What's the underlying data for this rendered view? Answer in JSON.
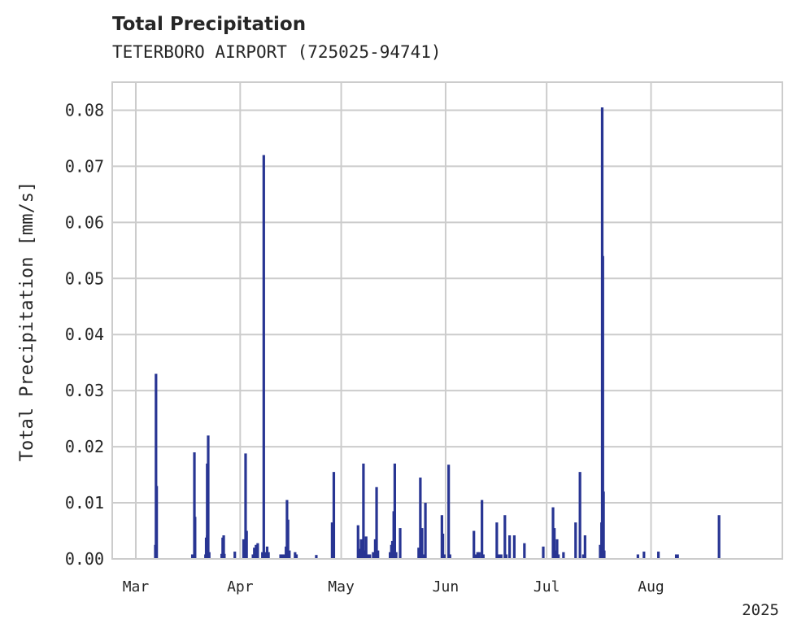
{
  "chart_data": {
    "type": "bar",
    "title": "Total Precipitation",
    "subtitle": "TETERBORO AIRPORT (725025-94741)",
    "xlabel": "",
    "ylabel": "Total Precipitation [mm/s]",
    "x_offset_label": "2025",
    "x_axis_unit": "days since Feb 1, 2025",
    "xlim": [
      21,
      220
    ],
    "ylim": [
      0,
      0.085
    ],
    "yticks": [
      0.0,
      0.01,
      0.02,
      0.03,
      0.04,
      0.05,
      0.06,
      0.07,
      0.08
    ],
    "ytick_labels": [
      "0.00",
      "0.01",
      "0.02",
      "0.03",
      "0.04",
      "0.05",
      "0.06",
      "0.07",
      "0.08"
    ],
    "xticks": [
      {
        "day": 28,
        "label": "Mar"
      },
      {
        "day": 59,
        "label": "Apr"
      },
      {
        "day": 89,
        "label": "May"
      },
      {
        "day": 120,
        "label": "Jun"
      },
      {
        "day": 150,
        "label": "Jul"
      },
      {
        "day": 181,
        "label": "Aug"
      }
    ],
    "grid": true,
    "series": [
      {
        "name": "Total Precipitation",
        "color": "#283593",
        "points": [
          {
            "x": 33.8,
            "y": 0.0025
          },
          {
            "x": 34.0,
            "y": 0.033
          },
          {
            "x": 34.2,
            "y": 0.013
          },
          {
            "x": 44.8,
            "y": 0.0008
          },
          {
            "x": 45.4,
            "y": 0.019
          },
          {
            "x": 45.6,
            "y": 0.0075
          },
          {
            "x": 48.7,
            "y": 0.0008
          },
          {
            "x": 48.9,
            "y": 0.0038
          },
          {
            "x": 49.2,
            "y": 0.0042
          },
          {
            "x": 49.5,
            "y": 0.0012
          },
          {
            "x": 49.2,
            "y": 0.017
          },
          {
            "x": 49.5,
            "y": 0.022
          },
          {
            "x": 49.8,
            "y": 0.0012
          },
          {
            "x": 53.5,
            "y": 0.0009
          },
          {
            "x": 53.8,
            "y": 0.0038
          },
          {
            "x": 54.1,
            "y": 0.0042
          },
          {
            "x": 54.3,
            "y": 0.0009
          },
          {
            "x": 57.4,
            "y": 0.0013
          },
          {
            "x": 60.0,
            "y": 0.0035
          },
          {
            "x": 60.6,
            "y": 0.0188
          },
          {
            "x": 60.9,
            "y": 0.005
          },
          {
            "x": 62.8,
            "y": 0.0008
          },
          {
            "x": 63.2,
            "y": 0.002
          },
          {
            "x": 63.7,
            "y": 0.0025
          },
          {
            "x": 64.2,
            "y": 0.0028
          },
          {
            "x": 65.6,
            "y": 0.0012
          },
          {
            "x": 66.0,
            "y": 0.072
          },
          {
            "x": 66.4,
            "y": 0.0012
          },
          {
            "x": 67.0,
            "y": 0.0022
          },
          {
            "x": 67.4,
            "y": 0.0012
          },
          {
            "x": 71.0,
            "y": 0.0008
          },
          {
            "x": 71.5,
            "y": 0.0008
          },
          {
            "x": 72.0,
            "y": 0.0008
          },
          {
            "x": 72.6,
            "y": 0.0022
          },
          {
            "x": 72.9,
            "y": 0.0105
          },
          {
            "x": 73.2,
            "y": 0.007
          },
          {
            "x": 73.6,
            "y": 0.0015
          },
          {
            "x": 75.3,
            "y": 0.0012
          },
          {
            "x": 75.7,
            "y": 0.0008
          },
          {
            "x": 81.6,
            "y": 0.0007
          },
          {
            "x": 86.3,
            "y": 0.0065
          },
          {
            "x": 86.8,
            "y": 0.0155
          },
          {
            "x": 94.0,
            "y": 0.006
          },
          {
            "x": 94.5,
            "y": 0.0018
          },
          {
            "x": 94.9,
            "y": 0.0035
          },
          {
            "x": 95.6,
            "y": 0.017
          },
          {
            "x": 96.0,
            "y": 0.0015
          },
          {
            "x": 96.4,
            "y": 0.004
          },
          {
            "x": 96.9,
            "y": 0.0008
          },
          {
            "x": 97.5,
            "y": 0.0008
          },
          {
            "x": 98.5,
            "y": 0.0012
          },
          {
            "x": 99.1,
            "y": 0.0035
          },
          {
            "x": 99.5,
            "y": 0.0128
          },
          {
            "x": 99.9,
            "y": 0.0015
          },
          {
            "x": 103.5,
            "y": 0.0012
          },
          {
            "x": 103.9,
            "y": 0.0025
          },
          {
            "x": 104.2,
            "y": 0.0032
          },
          {
            "x": 104.6,
            "y": 0.0085
          },
          {
            "x": 104.9,
            "y": 0.017
          },
          {
            "x": 105.3,
            "y": 0.0012
          },
          {
            "x": 106.5,
            "y": 0.0055
          },
          {
            "x": 112.0,
            "y": 0.002
          },
          {
            "x": 112.5,
            "y": 0.0145
          },
          {
            "x": 113.0,
            "y": 0.0055
          },
          {
            "x": 113.5,
            "y": 0.0008
          },
          {
            "x": 114.0,
            "y": 0.01
          },
          {
            "x": 118.9,
            "y": 0.0078
          },
          {
            "x": 119.2,
            "y": 0.0045
          },
          {
            "x": 119.6,
            "y": 0.0008
          },
          {
            "x": 120.9,
            "y": 0.0168
          },
          {
            "x": 121.3,
            "y": 0.0008
          },
          {
            "x": 128.4,
            "y": 0.005
          },
          {
            "x": 129.0,
            "y": 0.0008
          },
          {
            "x": 129.5,
            "y": 0.0012
          },
          {
            "x": 130.0,
            "y": 0.0012
          },
          {
            "x": 130.8,
            "y": 0.0105
          },
          {
            "x": 131.2,
            "y": 0.0008
          },
          {
            "x": 135.2,
            "y": 0.0065
          },
          {
            "x": 135.6,
            "y": 0.0008
          },
          {
            "x": 136.0,
            "y": 0.0008
          },
          {
            "x": 136.5,
            "y": 0.0008
          },
          {
            "x": 137.6,
            "y": 0.0078
          },
          {
            "x": 138.0,
            "y": 0.0008
          },
          {
            "x": 139.0,
            "y": 0.0042
          },
          {
            "x": 140.4,
            "y": 0.0042
          },
          {
            "x": 143.4,
            "y": 0.0028
          },
          {
            "x": 149.0,
            "y": 0.0022
          },
          {
            "x": 151.9,
            "y": 0.0092
          },
          {
            "x": 152.3,
            "y": 0.0055
          },
          {
            "x": 152.7,
            "y": 0.0015
          },
          {
            "x": 153.1,
            "y": 0.0035
          },
          {
            "x": 153.5,
            "y": 0.0008
          },
          {
            "x": 155.0,
            "y": 0.0012
          },
          {
            "x": 158.6,
            "y": 0.0065
          },
          {
            "x": 159.9,
            "y": 0.0155
          },
          {
            "x": 160.9,
            "y": 0.0008
          },
          {
            "x": 161.4,
            "y": 0.0042
          },
          {
            "x": 165.9,
            "y": 0.0025
          },
          {
            "x": 166.3,
            "y": 0.0065
          },
          {
            "x": 166.5,
            "y": 0.0805
          },
          {
            "x": 166.7,
            "y": 0.054
          },
          {
            "x": 166.9,
            "y": 0.012
          },
          {
            "x": 167.1,
            "y": 0.0015
          },
          {
            "x": 177.1,
            "y": 0.0008
          },
          {
            "x": 178.9,
            "y": 0.0013
          },
          {
            "x": 183.2,
            "y": 0.0013
          },
          {
            "x": 188.5,
            "y": 0.0008
          },
          {
            "x": 188.9,
            "y": 0.0008
          },
          {
            "x": 201.2,
            "y": 0.0078
          }
        ]
      }
    ]
  }
}
